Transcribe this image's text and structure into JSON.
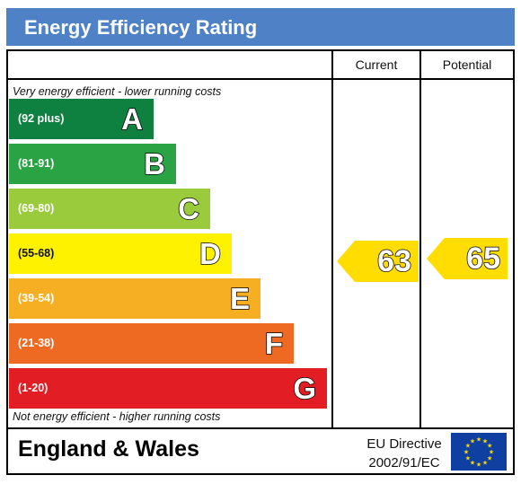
{
  "title": "Energy Efficiency Rating",
  "columns": {
    "current": "Current",
    "potential": "Potential"
  },
  "top_note": "Very energy efficient - lower running costs",
  "bottom_note": "Not energy efficient - higher running costs",
  "bands": [
    {
      "range": "(92 plus)",
      "letter": "A",
      "color": "#0e8040"
    },
    {
      "range": "(81-91)",
      "letter": "B",
      "color": "#2aa344"
    },
    {
      "range": "(69-80)",
      "letter": "C",
      "color": "#9acb3c"
    },
    {
      "range": "(55-68)",
      "letter": "D",
      "color": "#fef200"
    },
    {
      "range": "(39-54)",
      "letter": "E",
      "color": "#f6ae22"
    },
    {
      "range": "(21-38)",
      "letter": "F",
      "color": "#ee6a23"
    },
    {
      "range": "(1-20)",
      "letter": "G",
      "color": "#e31d24"
    }
  ],
  "chart_data": {
    "type": "bar",
    "categories": [
      "A",
      "B",
      "C",
      "D",
      "E",
      "F",
      "G"
    ],
    "ranges": [
      "(92 plus)",
      "(81-91)",
      "(69-80)",
      "(55-68)",
      "(39-54)",
      "(21-38)",
      "(1-20)"
    ],
    "current": 63,
    "potential": 65,
    "arrow_color": "#ffdd00"
  },
  "footer": {
    "region": "England & Wales",
    "directive_line1": "EU Directive",
    "directive_line2": "2002/91/EC",
    "flag_icon": "eu-flag-icon"
  }
}
